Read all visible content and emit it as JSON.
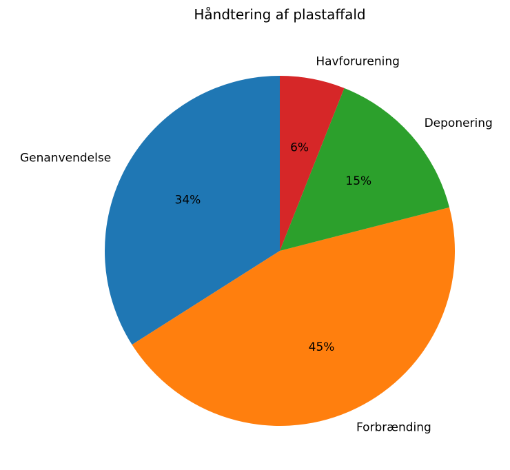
{
  "chart_data": {
    "type": "pie",
    "title": "Håndtering af plastaffald",
    "categories": [
      "Genanvendelse",
      "Forbrænding",
      "Deponering",
      "Havforurening"
    ],
    "values": [
      34,
      45,
      15,
      6
    ],
    "percent_labels": [
      "34%",
      "45%",
      "15%",
      "6%"
    ],
    "colors": [
      "#1f77b4",
      "#ff7f0e",
      "#2ca02c",
      "#d62728"
    ],
    "start_angle_deg": 90,
    "direction": "counterclockwise",
    "legend": "none"
  }
}
